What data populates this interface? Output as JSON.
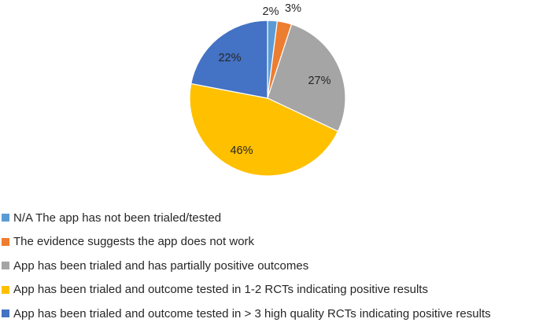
{
  "chart_data": {
    "type": "pie",
    "slices": [
      {
        "label": "N/A The app has not been trialed/tested",
        "value": 2,
        "value_label": "2%",
        "color": "#5B9BD5"
      },
      {
        "label": "The evidence suggests the app does not work",
        "value": 3,
        "value_label": "3%",
        "color": "#ED7D31"
      },
      {
        "label": "App has been trialed and has partially positive outcomes",
        "value": 27,
        "value_label": "27%",
        "color": "#A5A5A5"
      },
      {
        "label": "App has been trialed and outcome tested in 1-2 RCTs indicating positive results",
        "value": 46,
        "value_label": "46%",
        "color": "#FFC000"
      },
      {
        "label": "App has been trialed and outcome tested in > 3 high quality RCTs indicating positive results",
        "value": 22,
        "value_label": "22%",
        "color": "#4472C4"
      }
    ],
    "start_angle": "12 o'clock",
    "direction": "clockwise",
    "legend_position": "bottom-left"
  }
}
